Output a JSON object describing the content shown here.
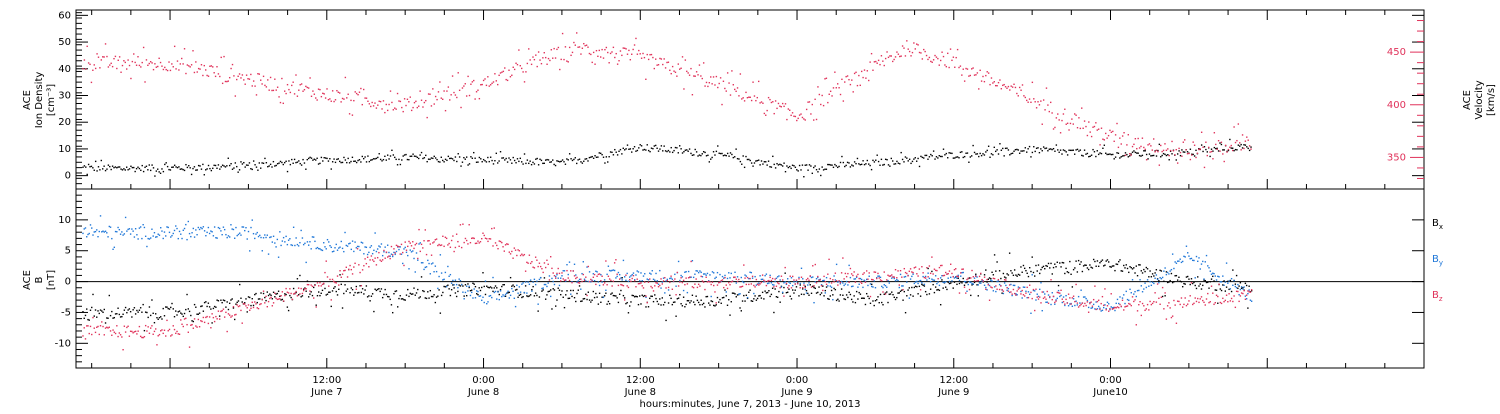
{
  "chart_data": [
    {
      "type": "scatter",
      "panel": "top",
      "y_left_label": [
        "ACE",
        "Ion Density",
        "[cm⁻³]"
      ],
      "y_right_label": [
        "ACE",
        "Velocity",
        "[km/s]"
      ],
      "ylim_left": [
        -5,
        62
      ],
      "ylim_right": [
        320,
        490
      ],
      "left_ticks": [
        0,
        10,
        20,
        30,
        40,
        50,
        60
      ],
      "right_ticks": [
        350,
        400,
        450
      ],
      "series": [
        {
          "key": "density",
          "color": "#000000",
          "axis": "left",
          "x": [
            0,
            0.25,
            0.5,
            0.75,
            1.0,
            1.25,
            1.5,
            1.75,
            2.0,
            2.25,
            2.5,
            2.75,
            3.0,
            3.25,
            3.5
          ],
          "y": [
            3,
            4,
            6,
            7,
            6,
            5,
            11,
            8,
            3,
            5,
            8,
            10,
            8,
            9,
            12
          ]
        },
        {
          "key": "velocity",
          "color": "#e0325a",
          "axis": "right",
          "x": [
            0,
            0.25,
            0.5,
            0.75,
            1.0,
            1.15,
            1.3,
            1.5,
            1.75,
            2.0,
            2.15,
            2.35,
            2.5,
            2.75,
            3.0,
            3.25,
            3.5
          ],
          "y": [
            440,
            425,
            410,
            400,
            420,
            440,
            455,
            445,
            420,
            390,
            420,
            455,
            440,
            405,
            370,
            355,
            370
          ]
        }
      ]
    },
    {
      "type": "line",
      "panel": "bottom",
      "y_left_label": [
        "ACE",
        "B",
        "[nT]"
      ],
      "ylim": [
        -14,
        15
      ],
      "left_ticks": [
        -10,
        -5,
        0,
        5,
        10
      ],
      "zero_line": true,
      "series": [
        {
          "key": "Bx",
          "legend": "Bₓ",
          "color": "#000000",
          "x": [
            0,
            0.25,
            0.5,
            0.75,
            1.0,
            1.25,
            1.5,
            1.75,
            2.0,
            2.25,
            2.5,
            2.75,
            3.0,
            3.25,
            3.5
          ],
          "y": [
            -5,
            -3,
            -1,
            -2,
            -1,
            -2,
            -3,
            -3,
            -1,
            -3,
            0,
            2,
            3,
            0,
            -1
          ]
        },
        {
          "key": "By",
          "legend": "Bᵧ",
          "color": "#1f77d8",
          "x": [
            0,
            0.25,
            0.5,
            0.75,
            1.0,
            1.25,
            1.5,
            1.75,
            2.0,
            2.25,
            2.5,
            2.75,
            3.0,
            3.25,
            3.5
          ],
          "y": [
            8,
            8,
            6,
            5,
            -3,
            1,
            1,
            1,
            0,
            0,
            1,
            -2,
            -4,
            4,
            -4
          ]
        },
        {
          "key": "Bz",
          "legend": "B_z",
          "color": "#e0325a",
          "x": [
            0,
            0.25,
            0.5,
            0.75,
            1.0,
            1.25,
            1.5,
            1.75,
            2.0,
            2.25,
            2.5,
            2.75,
            3.0,
            3.25,
            3.5
          ],
          "y": [
            -8,
            -4,
            0,
            6,
            7,
            1,
            0,
            0,
            0,
            1,
            2,
            -2,
            -4,
            -3,
            -2
          ]
        }
      ]
    }
  ],
  "x_axis": {
    "tick_top": [
      "12:00",
      "0:00",
      "12:00",
      "0:00",
      "12:00",
      "0:00"
    ],
    "tick_bottom": [
      "June 7",
      "June 8",
      "June 8",
      "June 9",
      "June 9",
      "June10"
    ],
    "xlabel": "hours:minutes, June  7, 2013 - June 10, 2013"
  },
  "legend_labels": {
    "bx_main": "B",
    "bx_sub": "x",
    "by_main": "B",
    "by_sub": "y",
    "bz_main": "B",
    "bz_sub": "z"
  }
}
